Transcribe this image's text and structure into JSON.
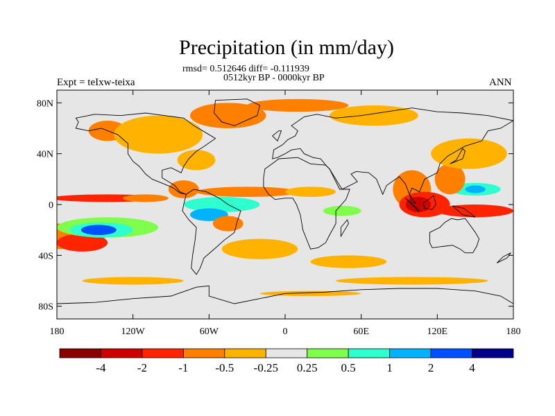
{
  "title": "Precipitation (in mm/day)",
  "stats": "rmsd= 0.512646 diff= -0.111939",
  "period": "0512kyr BP - 0000kyr BP",
  "left_label": "Expt = teIxw-teixa",
  "right_label": "ANN",
  "axes": {
    "lat_ticks": [
      {
        "value": 80,
        "label": "80N"
      },
      {
        "value": 40,
        "label": "40N"
      },
      {
        "value": 0,
        "label": "0"
      },
      {
        "value": -40,
        "label": "40S"
      },
      {
        "value": -80,
        "label": "80S"
      }
    ],
    "lon_ticks": [
      {
        "value": -180,
        "label": "180"
      },
      {
        "value": -120,
        "label": "120W"
      },
      {
        "value": -60,
        "label": "60W"
      },
      {
        "value": 0,
        "label": "0"
      },
      {
        "value": 60,
        "label": "60E"
      },
      {
        "value": 120,
        "label": "120E"
      },
      {
        "value": 180,
        "label": "180"
      }
    ],
    "lon_range": [
      -180,
      180
    ],
    "lat_range": [
      -90,
      90
    ]
  },
  "colorbar": {
    "colors": [
      "#8b0000",
      "#cd0000",
      "#ff2400",
      "#ff7f00",
      "#ffb300",
      "#e6e6e6",
      "#7fff4c",
      "#2fffcf",
      "#00b2ff",
      "#0050ff",
      "#00008b"
    ],
    "labels": [
      "-4",
      "-2",
      "-1",
      "-0.5",
      "-0.25",
      "0.25",
      "0.5",
      "1",
      "2",
      "4"
    ]
  },
  "background_color": "#e6e6e6",
  "anomaly_regions": [
    {
      "lon": -180,
      "lat": -25,
      "rx": 35,
      "ry": 10,
      "level": -0.6
    },
    {
      "lon": -160,
      "lat": -30,
      "rx": 20,
      "ry": 7,
      "level": -1.2
    },
    {
      "lon": -140,
      "lat": 5,
      "rx": 45,
      "ry": 3,
      "level": -1.2
    },
    {
      "lon": -110,
      "lat": 5,
      "rx": 18,
      "ry": 3,
      "level": -0.6
    },
    {
      "lon": -140,
      "lat": -18,
      "rx": 40,
      "ry": 8,
      "level": 0.4
    },
    {
      "lon": -145,
      "lat": -20,
      "rx": 25,
      "ry": 6,
      "level": 0.8
    },
    {
      "lon": -147,
      "lat": -20,
      "rx": 14,
      "ry": 4,
      "level": 2.5
    },
    {
      "lon": -50,
      "lat": 0,
      "rx": 30,
      "ry": 6,
      "level": 0.6
    },
    {
      "lon": -60,
      "lat": -8,
      "rx": 15,
      "ry": 5,
      "level": 1.3
    },
    {
      "lon": -45,
      "lat": -15,
      "rx": 12,
      "ry": 6,
      "level": -0.6
    },
    {
      "lon": -80,
      "lat": 12,
      "rx": 12,
      "ry": 7,
      "level": -0.6
    },
    {
      "lon": -30,
      "lat": 10,
      "rx": 40,
      "ry": 4,
      "level": -0.6
    },
    {
      "lon": 20,
      "lat": 10,
      "rx": 20,
      "ry": 4,
      "level": -0.3
    },
    {
      "lon": 45,
      "lat": -5,
      "rx": 15,
      "ry": 4,
      "level": 0.4
    },
    {
      "lon": 100,
      "lat": 12,
      "rx": 15,
      "ry": 15,
      "level": -0.6
    },
    {
      "lon": 110,
      "lat": 0,
      "rx": 20,
      "ry": 10,
      "level": -1.5
    },
    {
      "lon": 105,
      "lat": 0,
      "rx": 10,
      "ry": 6,
      "level": -3
    },
    {
      "lon": 150,
      "lat": -5,
      "rx": 30,
      "ry": 5,
      "level": -1.2
    },
    {
      "lon": 150,
      "lat": 12,
      "rx": 20,
      "ry": 5,
      "level": 0.6
    },
    {
      "lon": 150,
      "lat": 12,
      "rx": 8,
      "ry": 3,
      "level": 1.5
    },
    {
      "lon": 130,
      "lat": 20,
      "rx": 12,
      "ry": 12,
      "level": -0.6
    },
    {
      "lon": 145,
      "lat": 40,
      "rx": 30,
      "ry": 12,
      "level": -0.3
    },
    {
      "lon": -140,
      "lat": 58,
      "rx": 15,
      "ry": 8,
      "level": -0.6
    },
    {
      "lon": -100,
      "lat": 55,
      "rx": 35,
      "ry": 15,
      "level": -0.3
    },
    {
      "lon": -45,
      "lat": 70,
      "rx": 30,
      "ry": 10,
      "level": -0.6
    },
    {
      "lon": 10,
      "lat": 78,
      "rx": 40,
      "ry": 5,
      "level": -0.6
    },
    {
      "lon": 70,
      "lat": 70,
      "rx": 35,
      "ry": 8,
      "level": -0.3
    },
    {
      "lon": -70,
      "lat": 35,
      "rx": 15,
      "ry": 8,
      "level": -0.3
    },
    {
      "lon": -20,
      "lat": -35,
      "rx": 30,
      "ry": 8,
      "level": -0.3
    },
    {
      "lon": 50,
      "lat": -45,
      "rx": 30,
      "ry": 5,
      "level": -0.3
    },
    {
      "lon": 100,
      "lat": -60,
      "rx": 60,
      "ry": 3,
      "level": -0.3
    },
    {
      "lon": -120,
      "lat": -60,
      "rx": 40,
      "ry": 3,
      "level": -0.3
    },
    {
      "lon": 20,
      "lat": -70,
      "rx": 40,
      "ry": 2,
      "level": -0.3
    }
  ]
}
